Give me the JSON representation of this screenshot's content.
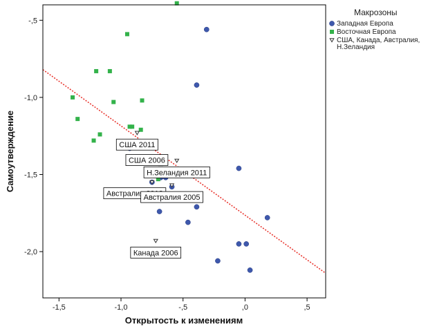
{
  "chart_data": {
    "type": "scatter",
    "xlabel": "Открытость к изменениям",
    "ylabel": "Самоутверждение",
    "xlim": [
      -1.63,
      0.65
    ],
    "ylim": [
      -2.3,
      -0.4
    ],
    "x_ticks": [
      {
        "value": -1.5,
        "label": "-1,5"
      },
      {
        "value": -1.0,
        "label": "-1,0"
      },
      {
        "value": -0.5,
        "label": "-,5"
      },
      {
        "value": 0.0,
        "label": ",0"
      },
      {
        "value": 0.5,
        "label": ",5"
      }
    ],
    "y_ticks": [
      {
        "value": -0.5,
        "label": "-,5"
      },
      {
        "value": -1.0,
        "label": "-1,0"
      },
      {
        "value": -1.5,
        "label": "-1,5"
      },
      {
        "value": -2.0,
        "label": "-2,0"
      }
    ],
    "grid": false,
    "legend": {
      "title": "Макрозоны",
      "placement": "top-right",
      "entries": [
        {
          "series": 0,
          "lines": [
            "Западная Европа"
          ]
        },
        {
          "series": 1,
          "lines": [
            "Восточная Европа"
          ]
        },
        {
          "series": 2,
          "lines": [
            "США, Канада, Австралия,",
            "Н.Зеландия"
          ]
        }
      ]
    },
    "series": [
      {
        "name": "Западная Европа",
        "marker": "circle",
        "color": "#3E58AC",
        "points": [
          {
            "x": -0.31,
            "y": -0.56
          },
          {
            "x": -0.39,
            "y": -0.92
          },
          {
            "x": -0.05,
            "y": -1.46
          },
          {
            "x": -0.64,
            "y": -1.52
          },
          {
            "x": -0.68,
            "y": -1.52
          },
          {
            "x": -0.59,
            "y": -1.58
          },
          {
            "x": -0.75,
            "y": -1.55
          },
          {
            "x": -0.39,
            "y": -1.71
          },
          {
            "x": -0.69,
            "y": -1.74
          },
          {
            "x": -0.46,
            "y": -1.81
          },
          {
            "x": 0.18,
            "y": -1.78
          },
          {
            "x": -0.05,
            "y": -1.95
          },
          {
            "x": 0.01,
            "y": -1.95
          },
          {
            "x": -0.22,
            "y": -2.06
          },
          {
            "x": 0.04,
            "y": -2.12
          },
          {
            "x": -0.93,
            "y": -1.33
          }
        ]
      },
      {
        "name": "Восточная Европа",
        "marker": "square",
        "color": "#33B24A",
        "points": [
          {
            "x": -0.55,
            "y": -0.39
          },
          {
            "x": -0.95,
            "y": -0.59
          },
          {
            "x": -1.2,
            "y": -0.83
          },
          {
            "x": -1.09,
            "y": -0.83
          },
          {
            "x": -1.39,
            "y": -1.0
          },
          {
            "x": -1.06,
            "y": -1.03
          },
          {
            "x": -0.83,
            "y": -1.02
          },
          {
            "x": -1.35,
            "y": -1.14
          },
          {
            "x": -0.93,
            "y": -1.19
          },
          {
            "x": -0.91,
            "y": -1.19
          },
          {
            "x": -0.84,
            "y": -1.21
          },
          {
            "x": -1.17,
            "y": -1.24
          },
          {
            "x": -1.22,
            "y": -1.28
          },
          {
            "x": -0.7,
            "y": -1.53
          }
        ]
      },
      {
        "name": "США, Канада, Австралия, Н.Зеландия",
        "marker": "triangle-down",
        "color": "#333333",
        "points": [
          {
            "x": -0.87,
            "y": -1.23
          },
          {
            "x": -0.68,
            "y": -1.46
          },
          {
            "x": -0.55,
            "y": -1.41
          },
          {
            "x": -0.75,
            "y": -1.55
          },
          {
            "x": -0.59,
            "y": -1.57
          },
          {
            "x": -0.72,
            "y": -1.93
          }
        ]
      }
    ],
    "trendline": {
      "style": "dotted",
      "color": "#E8352E",
      "x1": -1.63,
      "y1": -0.82,
      "x2": 0.65,
      "y2": -2.14
    },
    "annotations": [
      {
        "text": "США 2011",
        "x": -0.87,
        "y": -1.23,
        "side": "below"
      },
      {
        "text": "США 2006",
        "x": -0.68,
        "y": -1.46,
        "side": "above"
      },
      {
        "text": "Н.Зеландия 2011",
        "x": -0.55,
        "y": -1.41,
        "side": "below"
      },
      {
        "text": "Австралия 2012",
        "x": -0.75,
        "y": -1.55,
        "side": "below-left"
      },
      {
        "text": "Австралия 2005",
        "x": -0.59,
        "y": -1.57,
        "side": "below"
      },
      {
        "text": "Канада 2006",
        "x": -0.72,
        "y": -1.93,
        "side": "below"
      }
    ]
  }
}
